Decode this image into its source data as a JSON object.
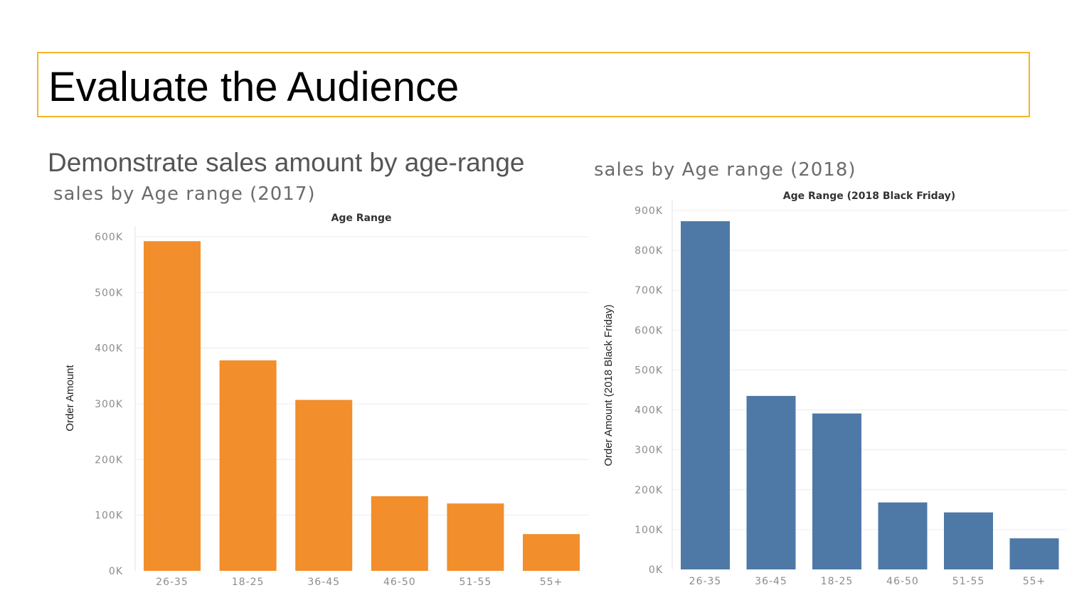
{
  "slide": {
    "title": "Evaluate the Audience",
    "subtitle": "Demonstrate sales amount by age-range",
    "left_caption": "sales by Age range (2017)",
    "right_caption": "sales by Age range (2018)"
  },
  "chart_data": [
    {
      "type": "bar",
      "title": "Age Range",
      "ylabel": "Order Amount",
      "xlabel": "",
      "categories": [
        "26-35",
        "18-25",
        "36-45",
        "46-50",
        "51-55",
        "55+"
      ],
      "values": [
        592000,
        378000,
        307000,
        134000,
        121000,
        66000
      ],
      "ylim": [
        0,
        600000
      ],
      "yticks": [
        "0K",
        "100K",
        "200K",
        "300K",
        "400K",
        "500K",
        "600K"
      ],
      "color": "#f28e2b",
      "grid": true
    },
    {
      "type": "bar",
      "title": "Age Range (2018 Black Friday)",
      "ylabel": "Order Amount (2018 Black Friday)",
      "xlabel": "",
      "categories": [
        "26-35",
        "36-45",
        "18-25",
        "46-50",
        "51-55",
        "55+"
      ],
      "values": [
        873000,
        435000,
        391000,
        168000,
        143000,
        78000
      ],
      "ylim": [
        0,
        900000
      ],
      "yticks": [
        "0K",
        "100K",
        "200K",
        "300K",
        "400K",
        "500K",
        "600K",
        "700K",
        "800K",
        "900K"
      ],
      "color": "#4e79a7",
      "grid": true
    }
  ]
}
